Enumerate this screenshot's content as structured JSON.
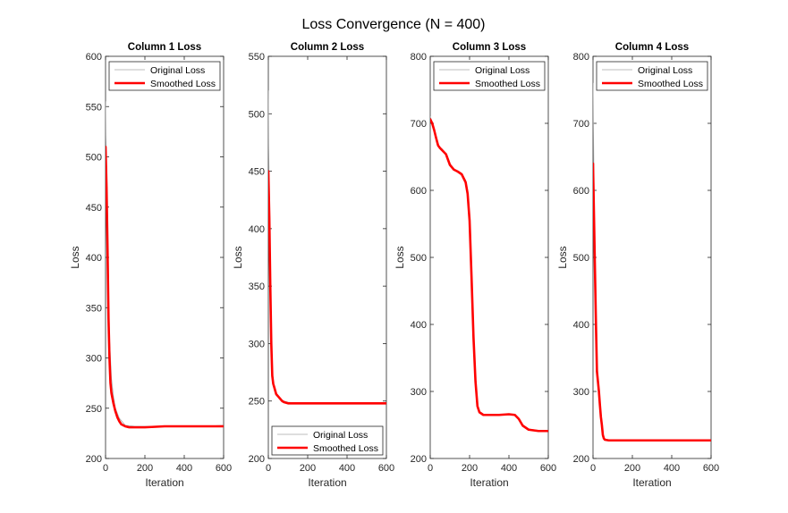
{
  "figure": {
    "title": "Loss Convergence (N = 400)"
  },
  "chart_data": [
    {
      "type": "line",
      "title": "Column 1 Loss",
      "xlabel": "Iteration",
      "ylabel": "Loss",
      "xlim": [
        0,
        600
      ],
      "ylim": [
        200,
        600
      ],
      "xticks": [
        0,
        200,
        400,
        600
      ],
      "yticks": [
        200,
        250,
        300,
        350,
        400,
        450,
        500,
        550,
        600
      ],
      "legend": {
        "location": "top",
        "entries": [
          "Original Loss",
          "Smoothed Loss"
        ]
      },
      "grid": false,
      "series": [
        {
          "name": "Original Loss",
          "color": "#a6a6a6",
          "x": [
            0,
            2,
            4,
            6,
            8,
            10,
            15,
            20,
            30,
            40,
            50,
            70,
            100,
            150,
            200,
            300,
            400,
            500,
            600
          ],
          "y": [
            555,
            520,
            500,
            480,
            450,
            420,
            360,
            320,
            280,
            262,
            250,
            240,
            233,
            232,
            232,
            232,
            232,
            232,
            233
          ]
        },
        {
          "name": "Smoothed Loss",
          "color": "#ff0000",
          "x": [
            0,
            5,
            10,
            15,
            20,
            25,
            30,
            40,
            50,
            60,
            70,
            80,
            100,
            120,
            150,
            200,
            300,
            400,
            500,
            600
          ],
          "y": [
            510,
            470,
            410,
            340,
            300,
            275,
            265,
            255,
            247,
            241,
            237,
            234,
            232,
            231,
            231,
            231,
            232,
            232,
            232,
            232
          ]
        }
      ]
    },
    {
      "type": "line",
      "title": "Column 2 Loss",
      "xlabel": "Iteration",
      "ylabel": "Loss",
      "xlim": [
        0,
        600
      ],
      "ylim": [
        200,
        550
      ],
      "xticks": [
        0,
        200,
        400,
        600
      ],
      "yticks": [
        200,
        250,
        300,
        350,
        400,
        450,
        500,
        550
      ],
      "legend": {
        "location": "bottom",
        "entries": [
          "Original Loss",
          "Smoothed Loss"
        ]
      },
      "grid": false,
      "series": [
        {
          "name": "Original Loss",
          "color": "#a6a6a6",
          "x": [
            0,
            2,
            4,
            6,
            8,
            10,
            15,
            20,
            30,
            40,
            60,
            80,
            100,
            150,
            200,
            300,
            400,
            500,
            600
          ],
          "y": [
            520,
            470,
            440,
            400,
            360,
            330,
            290,
            270,
            260,
            255,
            252,
            250,
            249,
            248,
            248,
            248,
            248,
            248,
            248
          ]
        },
        {
          "name": "Smoothed Loss",
          "color": "#ff0000",
          "x": [
            0,
            5,
            10,
            15,
            20,
            25,
            30,
            40,
            50,
            60,
            70,
            80,
            100,
            120,
            150,
            200,
            300,
            400,
            500,
            600
          ],
          "y": [
            450,
            410,
            350,
            300,
            272,
            265,
            262,
            256,
            254,
            252,
            250,
            249,
            248,
            248,
            248,
            248,
            248,
            248,
            248,
            248
          ]
        }
      ]
    },
    {
      "type": "line",
      "title": "Column 3 Loss",
      "xlabel": "Iteration",
      "ylabel": "Loss",
      "xlim": [
        0,
        600
      ],
      "ylim": [
        200,
        800
      ],
      "xticks": [
        0,
        200,
        400,
        600
      ],
      "yticks": [
        200,
        300,
        400,
        500,
        600,
        700,
        800
      ],
      "legend": {
        "location": "top",
        "entries": [
          "Original Loss",
          "Smoothed Loss"
        ]
      },
      "grid": false,
      "series": [
        {
          "name": "Original Loss",
          "color": "#a6a6a6",
          "x": [
            0,
            10,
            20,
            30,
            40,
            50,
            60,
            80,
            100,
            120,
            140,
            160,
            180,
            190,
            200,
            210,
            220,
            230,
            240,
            250,
            270,
            300,
            350,
            400,
            430,
            450,
            470,
            500,
            550,
            600
          ],
          "y": [
            710,
            702,
            692,
            680,
            668,
            664,
            662,
            655,
            640,
            632,
            629,
            625,
            615,
            600,
            560,
            480,
            390,
            320,
            280,
            270,
            266,
            265,
            265,
            265,
            265,
            260,
            250,
            244,
            242,
            241
          ]
        },
        {
          "name": "Smoothed Loss",
          "color": "#ff0000",
          "x": [
            0,
            10,
            20,
            30,
            40,
            50,
            60,
            80,
            100,
            120,
            140,
            160,
            180,
            190,
            200,
            210,
            220,
            230,
            240,
            250,
            270,
            300,
            350,
            400,
            430,
            450,
            470,
            500,
            550,
            600
          ],
          "y": [
            706,
            700,
            690,
            678,
            667,
            663,
            660,
            654,
            638,
            631,
            628,
            624,
            612,
            595,
            555,
            470,
            380,
            315,
            278,
            269,
            265,
            265,
            265,
            266,
            265,
            259,
            249,
            243,
            241,
            241
          ]
        }
      ]
    },
    {
      "type": "line",
      "title": "Column 4 Loss",
      "xlabel": "Iteration",
      "ylabel": "Loss",
      "xlim": [
        0,
        600
      ],
      "ylim": [
        200,
        800
      ],
      "xticks": [
        0,
        200,
        400,
        600
      ],
      "yticks": [
        200,
        300,
        400,
        500,
        600,
        700,
        800
      ],
      "legend": {
        "location": "top",
        "entries": [
          "Original Loss",
          "Smoothed Loss"
        ]
      },
      "grid": false,
      "series": [
        {
          "name": "Original Loss",
          "color": "#a6a6a6",
          "x": [
            0,
            2,
            4,
            6,
            8,
            10,
            15,
            20,
            25,
            30,
            40,
            50,
            60,
            80,
            100,
            200,
            300,
            400,
            500,
            600
          ],
          "y": [
            760,
            700,
            640,
            580,
            520,
            470,
            390,
            340,
            310,
            290,
            260,
            232,
            228,
            227,
            227,
            227,
            227,
            227,
            227,
            227
          ]
        },
        {
          "name": "Smoothed Loss",
          "color": "#ff0000",
          "x": [
            0,
            5,
            10,
            15,
            20,
            25,
            30,
            35,
            40,
            45,
            50,
            55,
            60,
            80,
            100,
            200,
            300,
            400,
            500,
            600
          ],
          "y": [
            640,
            560,
            480,
            400,
            330,
            315,
            300,
            280,
            262,
            250,
            235,
            230,
            228,
            227,
            227,
            227,
            227,
            227,
            227,
            227
          ]
        }
      ]
    }
  ]
}
